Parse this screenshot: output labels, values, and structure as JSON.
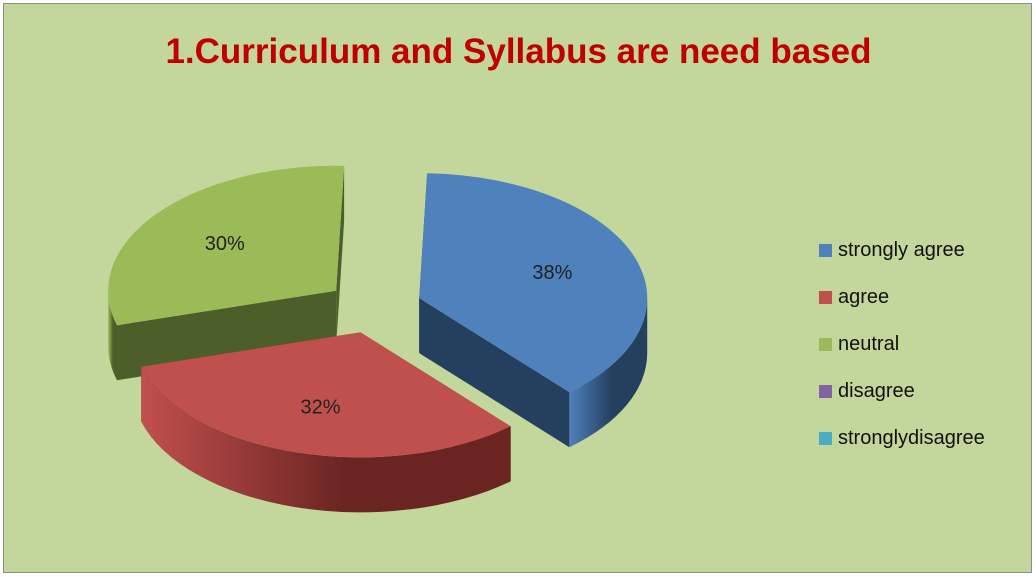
{
  "colors": {
    "background": "#c3d69b",
    "title": "#c00000"
  },
  "chart_data": {
    "type": "pie",
    "title": "1.Curriculum and Syllabus are need based",
    "legend_position": "right",
    "slices": [
      {
        "name": "strongly agree",
        "value": 38,
        "label": "38%",
        "color": "#4f81bd",
        "dark": "#253f5e"
      },
      {
        "name": "agree",
        "value": 32,
        "label": "32%",
        "color": "#c0504d",
        "dark": "#6a2523"
      },
      {
        "name": "neutral",
        "value": 30,
        "label": "30%",
        "color": "#9bbb59",
        "dark": "#4c5f2a"
      },
      {
        "name": "disagree",
        "value": 0,
        "label": "",
        "color": "#8064a2",
        "dark": "#403151"
      },
      {
        "name": "stronglydisagree",
        "value": 0,
        "label": "",
        "color": "#4bacc6",
        "dark": "#235663"
      }
    ]
  }
}
